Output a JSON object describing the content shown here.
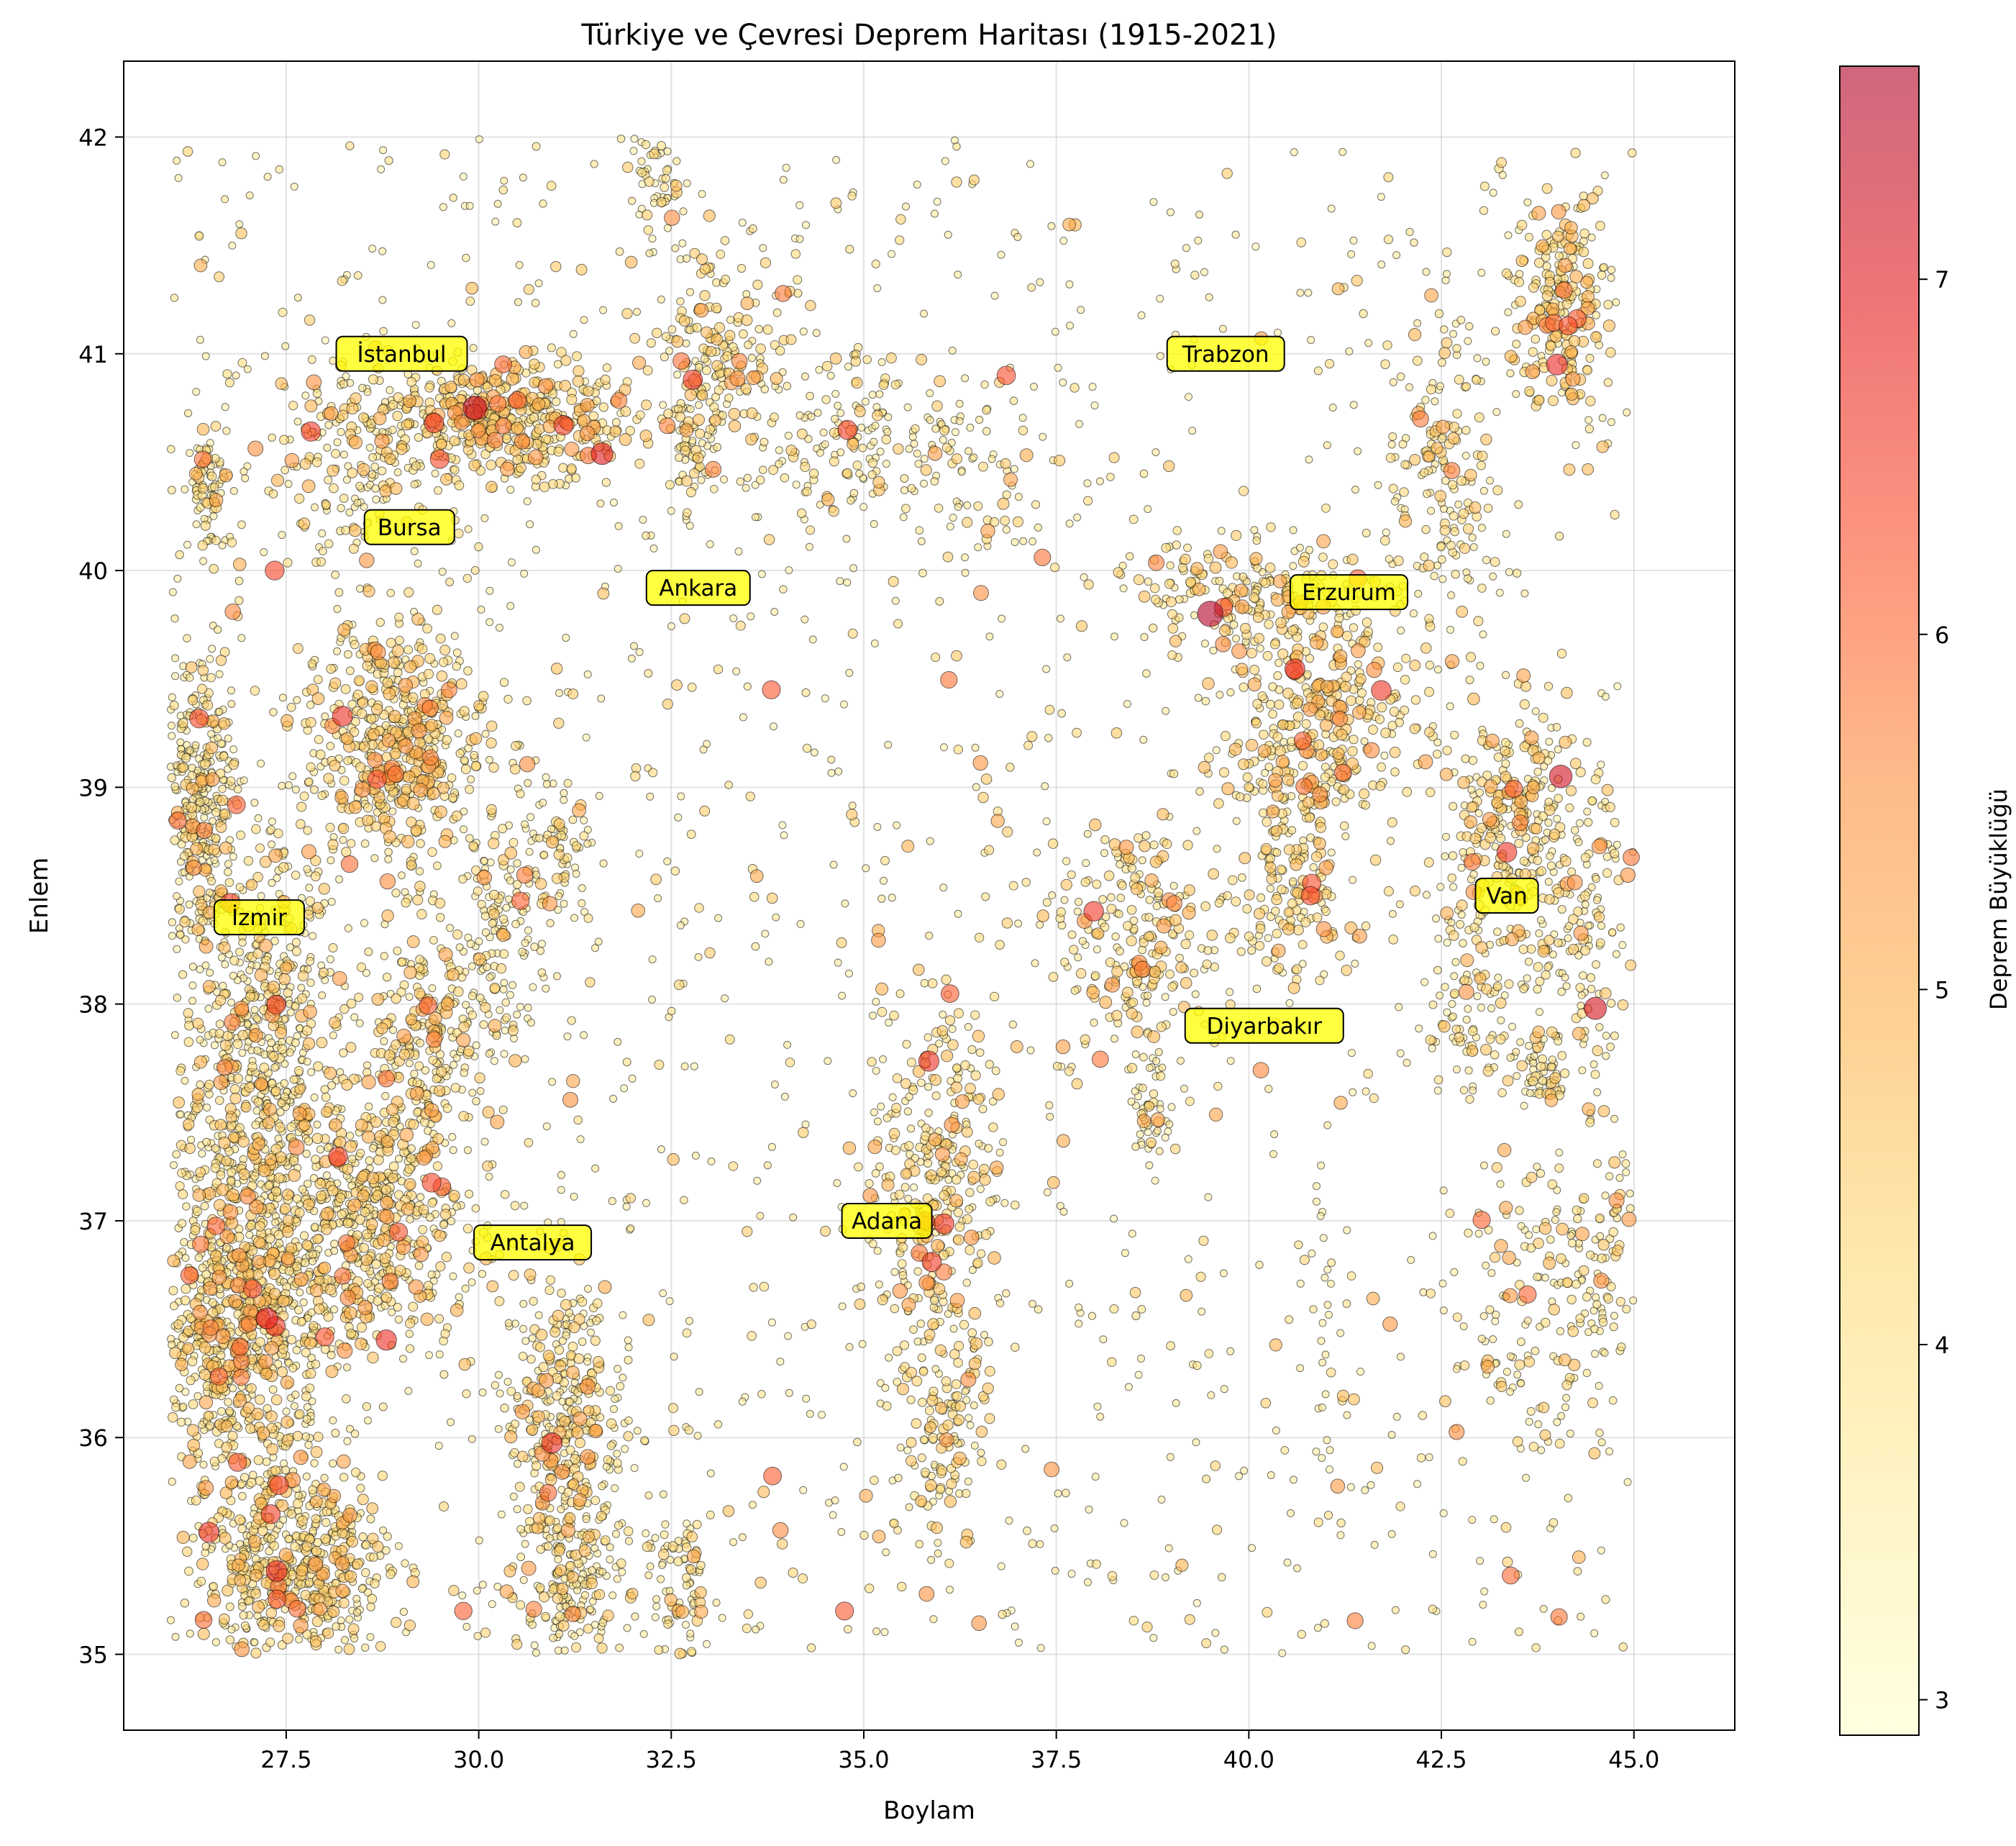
{
  "chart_data": {
    "type": "scatter",
    "title": "Türkiye ve Çevresi Deprem Haritası (1915-2021)",
    "xlabel": "Boylam",
    "ylabel": "Enlem",
    "xlim": [
      25.39,
      46.31
    ],
    "ylim": [
      34.65,
      42.35
    ],
    "x_ticks": [
      27.5,
      30.0,
      32.5,
      35.0,
      37.5,
      40.0,
      42.5,
      45.0
    ],
    "x_tick_labels": [
      "27.5",
      "30.0",
      "32.5",
      "35.0",
      "37.5",
      "40.0",
      "42.5",
      "45.0"
    ],
    "y_ticks": [
      35,
      36,
      37,
      38,
      39,
      40,
      41,
      42
    ],
    "y_tick_labels": [
      "35",
      "36",
      "37",
      "38",
      "39",
      "40",
      "41",
      "42"
    ],
    "grid": true,
    "colorbar": {
      "label": "Deprem Büyüklüğü",
      "range": [
        2.9,
        7.6
      ],
      "ticks": [
        3,
        4,
        5,
        6,
        7
      ],
      "tick_labels": [
        "3",
        "4",
        "5",
        "6",
        "7"
      ],
      "colormap": [
        "#ffffcc",
        "#ffeda0",
        "#fed976",
        "#feb24c",
        "#fd8d3c",
        "#fc4e2a",
        "#e31a1c",
        "#b10026"
      ],
      "alpha": 0.6
    },
    "cities": [
      {
        "name": "İstanbul",
        "lon": 29.0,
        "lat": 41.0
      },
      {
        "name": "Trabzon",
        "lon": 39.7,
        "lat": 41.0
      },
      {
        "name": "Bursa",
        "lon": 29.1,
        "lat": 40.2
      },
      {
        "name": "Ankara",
        "lon": 32.85,
        "lat": 39.92
      },
      {
        "name": "Erzurum",
        "lon": 41.3,
        "lat": 39.9
      },
      {
        "name": "İzmir",
        "lon": 27.15,
        "lat": 38.4
      },
      {
        "name": "Van",
        "lon": 43.35,
        "lat": 38.5
      },
      {
        "name": "Diyarbakır",
        "lon": 40.2,
        "lat": 37.9
      },
      {
        "name": "Adana",
        "lon": 35.3,
        "lat": 37.0
      },
      {
        "name": "Antalya",
        "lon": 30.7,
        "lat": 36.9
      }
    ],
    "label_box_color": "#ffff00",
    "zones": [
      {
        "lon": 26.9,
        "lat": 36.6,
        "sx": 0.55,
        "sy": 0.5,
        "n": 900,
        "mag": 4.3
      },
      {
        "lon": 27.6,
        "lat": 35.4,
        "sx": 0.6,
        "sy": 0.25,
        "n": 500,
        "mag": 4.3
      },
      {
        "lon": 27.2,
        "lat": 37.9,
        "sx": 0.45,
        "sy": 0.4,
        "n": 450,
        "mag": 4.1
      },
      {
        "lon": 26.4,
        "lat": 38.9,
        "sx": 0.25,
        "sy": 0.35,
        "n": 350,
        "mag": 4.0
      },
      {
        "lon": 28.9,
        "lat": 39.2,
        "sx": 0.6,
        "sy": 0.28,
        "n": 500,
        "mag": 4.4
      },
      {
        "lon": 28.5,
        "lat": 37.0,
        "sx": 0.65,
        "sy": 0.3,
        "n": 500,
        "mag": 4.3
      },
      {
        "lon": 29.3,
        "lat": 37.8,
        "sx": 0.45,
        "sy": 0.3,
        "n": 250,
        "mag": 4.3
      },
      {
        "lon": 30.4,
        "lat": 40.7,
        "sx": 0.8,
        "sy": 0.13,
        "n": 400,
        "mag": 4.5
      },
      {
        "lon": 28.4,
        "lat": 40.5,
        "sx": 0.6,
        "sy": 0.25,
        "n": 200,
        "mag": 4.2
      },
      {
        "lon": 26.5,
        "lat": 40.4,
        "sx": 0.15,
        "sy": 0.15,
        "n": 80,
        "mag": 4.1
      },
      {
        "lon": 31.1,
        "lat": 36.0,
        "sx": 0.4,
        "sy": 0.4,
        "n": 400,
        "mag": 4.2
      },
      {
        "lon": 31.2,
        "lat": 35.3,
        "sx": 0.3,
        "sy": 0.15,
        "n": 120,
        "mag": 4.0
      },
      {
        "lon": 30.2,
        "lat": 38.3,
        "sx": 0.25,
        "sy": 0.3,
        "n": 100,
        "mag": 4.0
      },
      {
        "lon": 31.0,
        "lat": 38.7,
        "sx": 0.25,
        "sy": 0.2,
        "n": 80,
        "mag": 4.1
      },
      {
        "lon": 32.6,
        "lat": 35.3,
        "sx": 0.25,
        "sy": 0.2,
        "n": 80,
        "mag": 4.0
      },
      {
        "lon": 33.2,
        "lat": 41.0,
        "sx": 0.4,
        "sy": 0.25,
        "n": 150,
        "mag": 4.3
      },
      {
        "lon": 32.8,
        "lat": 40.6,
        "sx": 0.2,
        "sy": 0.2,
        "n": 80,
        "mag": 4.0
      },
      {
        "lon": 32.3,
        "lat": 41.8,
        "sx": 0.2,
        "sy": 0.12,
        "n": 50,
        "mag": 4.0
      },
      {
        "lon": 34.6,
        "lat": 40.6,
        "sx": 0.5,
        "sy": 0.2,
        "n": 120,
        "mag": 4.1
      },
      {
        "lon": 36.3,
        "lat": 40.5,
        "sx": 0.6,
        "sy": 0.2,
        "n": 80,
        "mag": 4.0
      },
      {
        "lon": 35.9,
        "lat": 37.2,
        "sx": 0.45,
        "sy": 0.45,
        "n": 320,
        "mag": 4.3
      },
      {
        "lon": 36.0,
        "lat": 36.0,
        "sx": 0.3,
        "sy": 0.3,
        "n": 120,
        "mag": 4.3
      },
      {
        "lon": 38.6,
        "lat": 38.3,
        "sx": 0.55,
        "sy": 0.28,
        "n": 220,
        "mag": 4.3
      },
      {
        "lon": 38.7,
        "lat": 37.5,
        "sx": 0.15,
        "sy": 0.15,
        "n": 50,
        "mag": 4.0
      },
      {
        "lon": 40.0,
        "lat": 39.9,
        "sx": 0.9,
        "sy": 0.12,
        "n": 200,
        "mag": 4.3
      },
      {
        "lon": 40.9,
        "lat": 39.3,
        "sx": 0.6,
        "sy": 0.25,
        "n": 300,
        "mag": 4.5
      },
      {
        "lon": 40.5,
        "lat": 38.6,
        "sx": 0.45,
        "sy": 0.25,
        "n": 150,
        "mag": 4.4
      },
      {
        "lon": 43.4,
        "lat": 38.8,
        "sx": 0.45,
        "sy": 0.3,
        "n": 250,
        "mag": 4.3
      },
      {
        "lon": 44.3,
        "lat": 38.4,
        "sx": 0.35,
        "sy": 0.3,
        "n": 120,
        "mag": 4.2
      },
      {
        "lon": 42.9,
        "lat": 38.0,
        "sx": 0.2,
        "sy": 0.25,
        "n": 80,
        "mag": 4.1
      },
      {
        "lon": 44.1,
        "lat": 41.2,
        "sx": 0.3,
        "sy": 0.25,
        "n": 200,
        "mag": 4.5
      },
      {
        "lon": 42.5,
        "lat": 40.4,
        "sx": 0.35,
        "sy": 0.35,
        "n": 150,
        "mag": 4.3
      },
      {
        "lon": 43.8,
        "lat": 37.7,
        "sx": 0.2,
        "sy": 0.1,
        "n": 60,
        "mag": 4.0
      },
      {
        "lon": 44.5,
        "lat": 36.8,
        "sx": 0.35,
        "sy": 0.5,
        "n": 120,
        "mag": 4.2
      },
      {
        "lon": 43.5,
        "lat": 36.6,
        "sx": 0.4,
        "sy": 0.35,
        "n": 100,
        "mag": 4.1
      },
      {
        "lon": 41.0,
        "lat": 36.4,
        "sx": 0.2,
        "sy": 0.3,
        "n": 30,
        "mag": 4.0
      }
    ],
    "uniform_points": 1500,
    "notable_events": [
      {
        "lon": 29.95,
        "lat": 40.75,
        "mag": 7.4
      },
      {
        "lon": 39.5,
        "lat": 39.8,
        "mag": 7.8
      },
      {
        "lon": 44.05,
        "lat": 39.05,
        "mag": 7.2
      },
      {
        "lon": 44.5,
        "lat": 37.98,
        "mag": 7.1
      },
      {
        "lon": 27.25,
        "lat": 36.55,
        "mag": 6.9
      },
      {
        "lon": 28.8,
        "lat": 36.45,
        "mag": 6.7
      },
      {
        "lon": 32.78,
        "lat": 40.88,
        "mag": 6.5
      },
      {
        "lon": 44.0,
        "lat": 40.95,
        "mag": 6.8
      },
      {
        "lon": 36.85,
        "lat": 40.9,
        "mag": 6.3
      },
      {
        "lon": 34.75,
        "lat": 35.2,
        "mag": 6.2
      },
      {
        "lon": 40.8,
        "lat": 38.5,
        "mag": 6.3
      },
      {
        "lon": 43.35,
        "lat": 38.7,
        "mag": 6.6
      },
      {
        "lon": 27.35,
        "lat": 40.0,
        "mag": 6.4
      },
      {
        "lon": 33.8,
        "lat": 39.45,
        "mag": 6.2
      },
      {
        "lon": 31.1,
        "lat": 40.67,
        "mag": 6.5
      },
      {
        "lon": 29.8,
        "lat": 35.2,
        "mag": 6.1
      },
      {
        "lon": 35.8,
        "lat": 37.0,
        "mag": 6.2
      }
    ]
  }
}
